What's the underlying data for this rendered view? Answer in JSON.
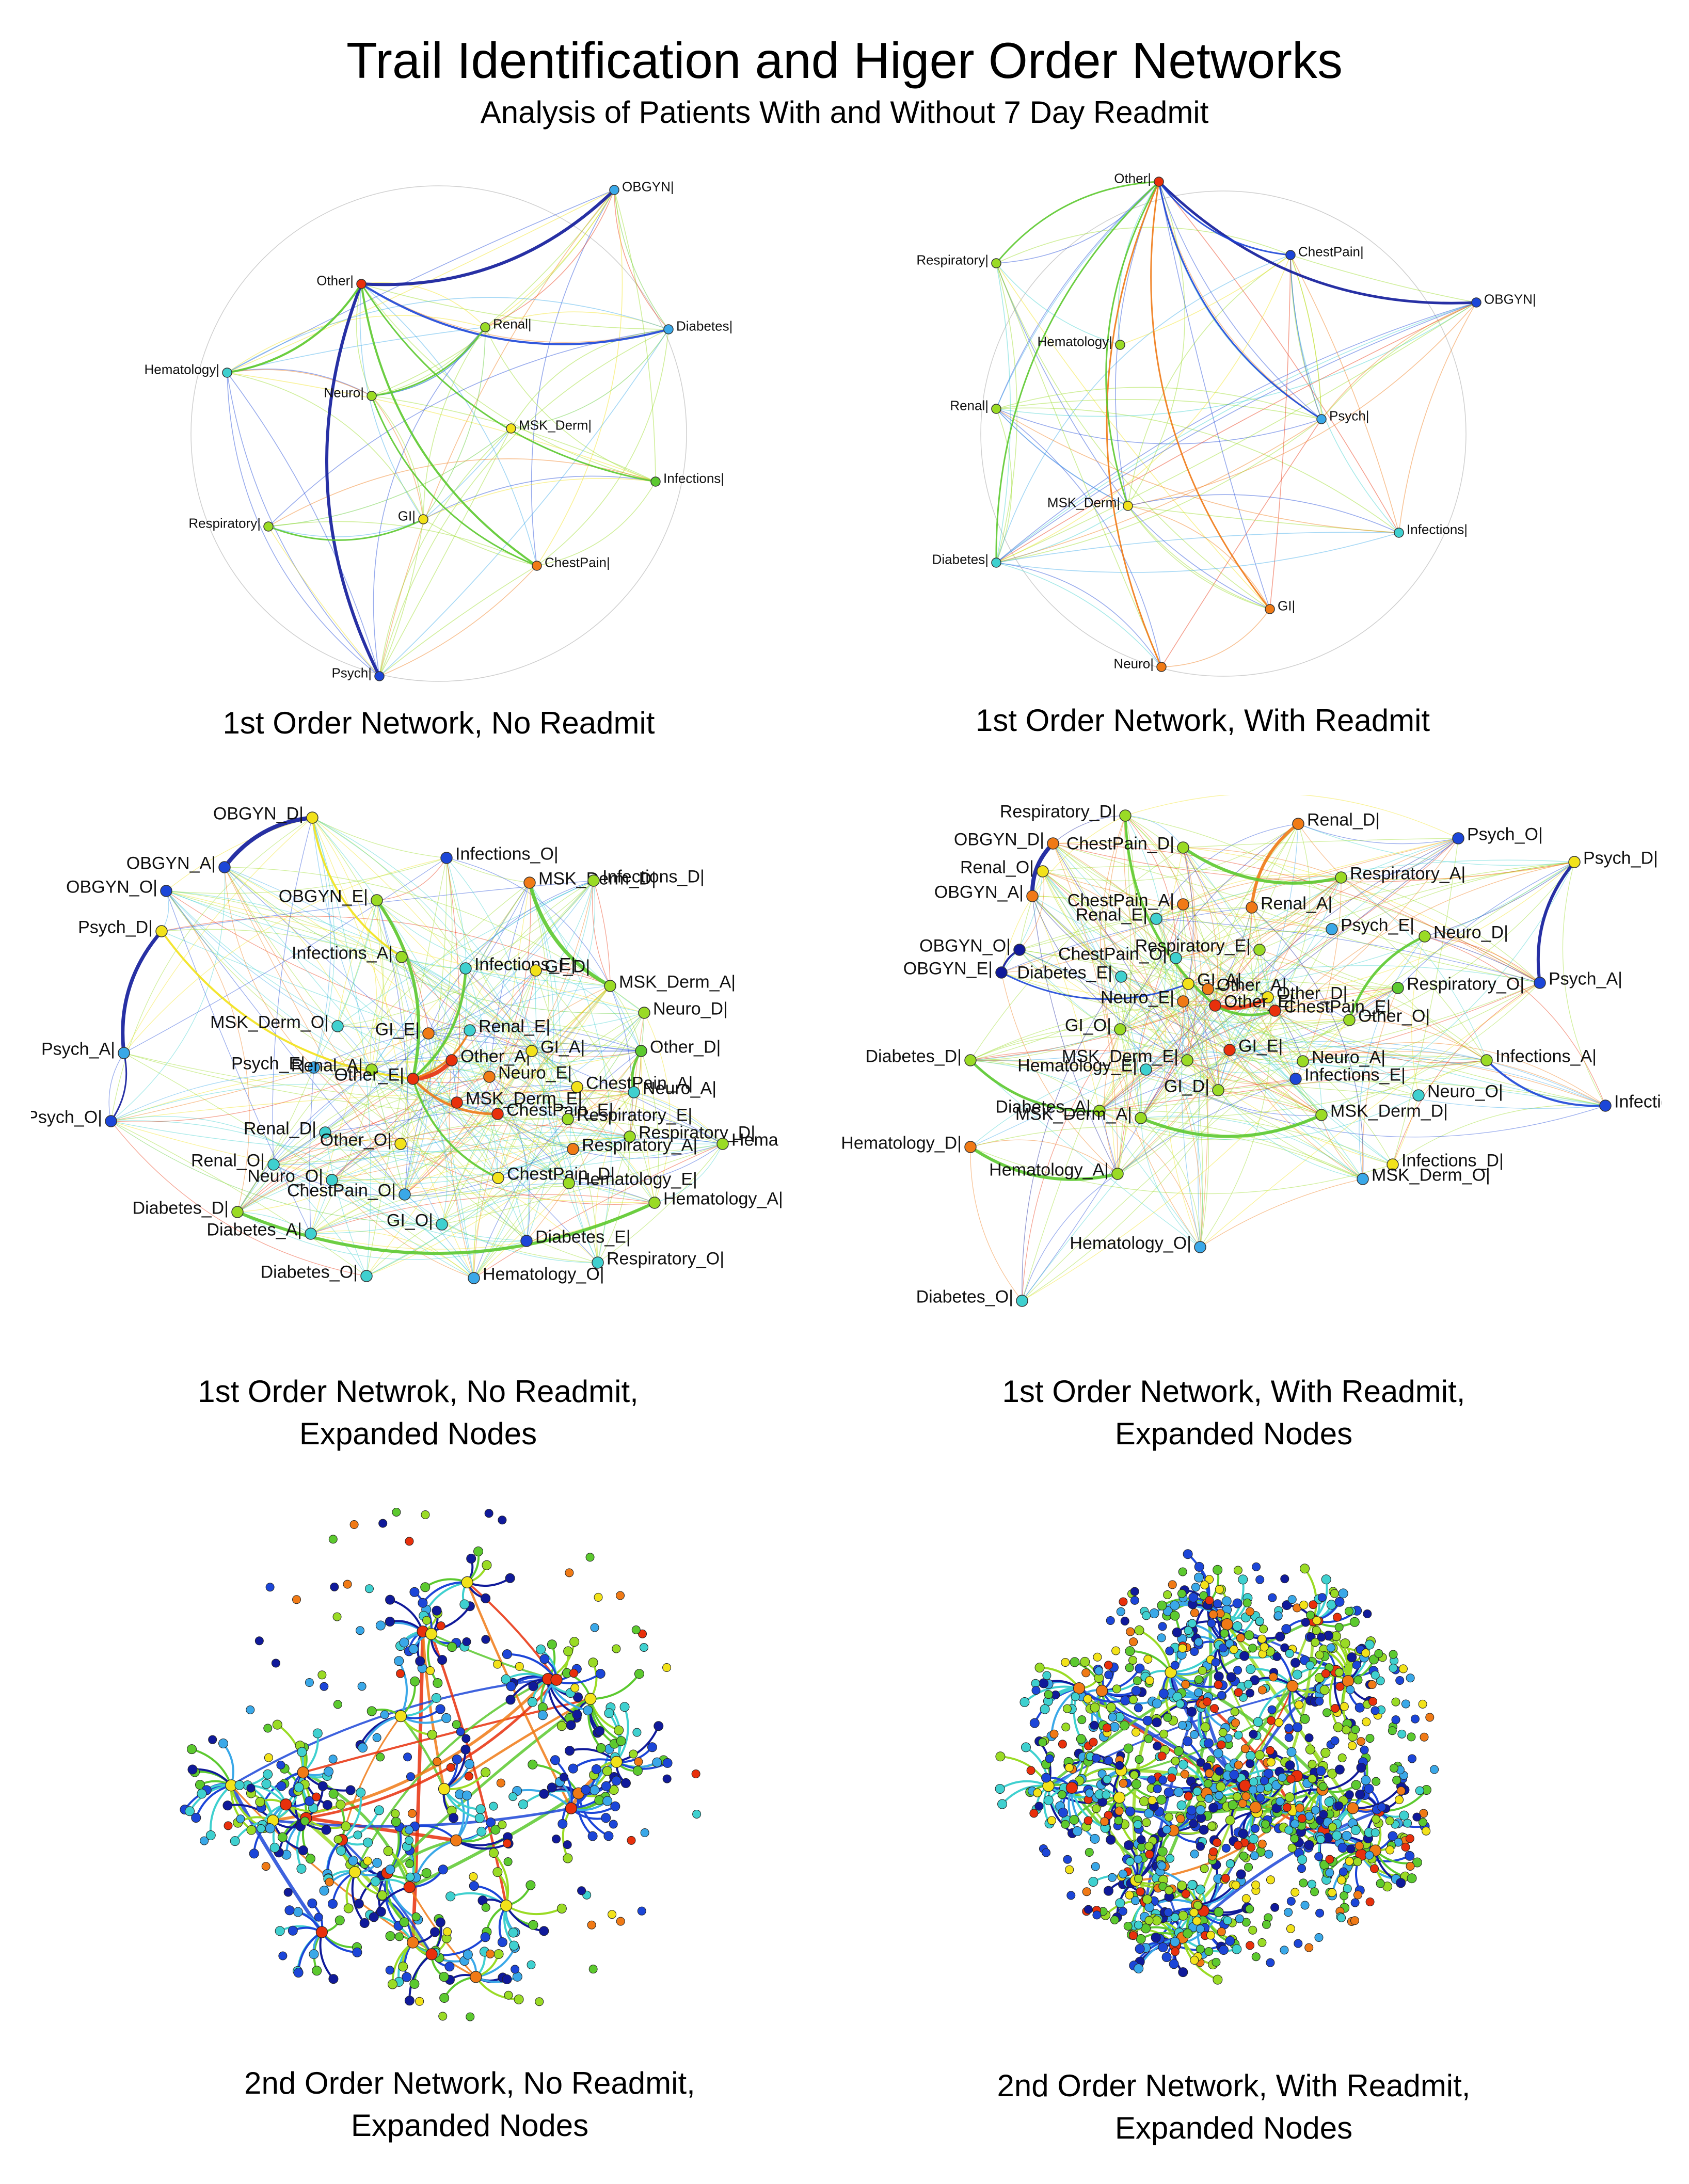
{
  "title": "Trail Identification and Higer Order Networks",
  "subtitle": "Analysis of Patients With and Without 7 Day Readmit",
  "colors": {
    "red": "#e8300c",
    "orange": "#f07a16",
    "yellow": "#f2e21a",
    "lime": "#9adb25",
    "green": "#5cc92f",
    "cyan": "#3fd0cf",
    "lightblue": "#3aa8e8",
    "blue": "#1c46d8",
    "navy": "#101a9a"
  },
  "panels": [
    {
      "id": "first-order-no-readmit",
      "caption": [
        "1st Order Network, No Readmit"
      ],
      "nodes": [
        {
          "label": "OBGYN|",
          "color": "lightblue"
        },
        {
          "label": "Other|",
          "color": "red"
        },
        {
          "label": "Renal|",
          "color": "lime"
        },
        {
          "label": "Diabetes|",
          "color": "lightblue"
        },
        {
          "label": "Hematology|",
          "color": "cyan"
        },
        {
          "label": "Neuro|",
          "color": "lime"
        },
        {
          "label": "MSK_Derm|",
          "color": "yellow"
        },
        {
          "label": "Infections|",
          "color": "green"
        },
        {
          "label": "Respiratory|",
          "color": "lime"
        },
        {
          "label": "GI|",
          "color": "yellow"
        },
        {
          "label": "ChestPain|",
          "color": "orange"
        },
        {
          "label": "Psych|",
          "color": "blue"
        }
      ]
    },
    {
      "id": "first-order-with-readmit",
      "caption": [
        "1st Order Network, With Readmit"
      ],
      "nodes": [
        {
          "label": "Other|",
          "color": "red"
        },
        {
          "label": "ChestPain|",
          "color": "blue"
        },
        {
          "label": "Respiratory|",
          "color": "lime"
        },
        {
          "label": "OBGYN|",
          "color": "blue"
        },
        {
          "label": "Hematology|",
          "color": "lime"
        },
        {
          "label": "Renal|",
          "color": "lime"
        },
        {
          "label": "Psych|",
          "color": "lightblue"
        },
        {
          "label": "MSK_Derm|",
          "color": "yellow"
        },
        {
          "label": "Infections|",
          "color": "cyan"
        },
        {
          "label": "Diabetes|",
          "color": "cyan"
        },
        {
          "label": "GI|",
          "color": "orange"
        },
        {
          "label": "Neuro|",
          "color": "orange"
        }
      ]
    },
    {
      "id": "first-order-no-readmit-expanded",
      "caption": [
        "1st Order Netwrok, No Readmit,",
        "Expanded Nodes"
      ],
      "nodes": [
        {
          "label": "OBGYN_D|",
          "color": "yellow"
        },
        {
          "label": "OBGYN_A|",
          "color": "blue"
        },
        {
          "label": "OBGYN_O|",
          "color": "blue"
        },
        {
          "label": "Infections_O|",
          "color": "blue"
        },
        {
          "label": "MSK_Derm_D|",
          "color": "orange"
        },
        {
          "label": "Infections_D|",
          "color": "lime"
        },
        {
          "label": "OBGYN_E|",
          "color": "lime"
        },
        {
          "label": "Psych_D|",
          "color": "yellow"
        },
        {
          "label": "Infections_A|",
          "color": "lime"
        },
        {
          "label": "Infections_E|",
          "color": "cyan"
        },
        {
          "label": "GI_D|",
          "color": "yellow"
        },
        {
          "label": "MSK_Derm_A|",
          "color": "lime"
        },
        {
          "label": "Neuro_D|",
          "color": "lime"
        },
        {
          "label": "MSK_Derm_O|",
          "color": "cyan"
        },
        {
          "label": "GI_E|",
          "color": "orange"
        },
        {
          "label": "Renal_E|",
          "color": "cyan"
        },
        {
          "label": "Other_D|",
          "color": "green"
        },
        {
          "label": "Psych_A|",
          "color": "lightblue"
        },
        {
          "label": "Other_A|",
          "color": "red"
        },
        {
          "label": "GI_A|",
          "color": "yellow"
        },
        {
          "label": "Psych_E|",
          "color": "lightblue"
        },
        {
          "label": "Renal_A|",
          "color": "lime"
        },
        {
          "label": "Other_E|",
          "color": "red"
        },
        {
          "label": "Neuro_E|",
          "color": "orange"
        },
        {
          "label": "ChestPain_A|",
          "color": "yellow"
        },
        {
          "label": "Neuro_A|",
          "color": "cyan"
        },
        {
          "label": "MSK_Derm_E|",
          "color": "red"
        },
        {
          "label": "ChestPain_E|",
          "color": "red"
        },
        {
          "label": "Psych_O|",
          "color": "blue"
        },
        {
          "label": "Respiratory_E|",
          "color": "lime"
        },
        {
          "label": "Renal_D|",
          "color": "cyan"
        },
        {
          "label": "Respiratory_D|",
          "color": "lime"
        },
        {
          "label": "Other_O|",
          "color": "yellow"
        },
        {
          "label": "Respiratory_A|",
          "color": "orange"
        },
        {
          "label": "Hema",
          "color": "lime"
        },
        {
          "label": "Renal_O|",
          "color": "cyan"
        },
        {
          "label": "Neuro_O|",
          "color": "cyan"
        },
        {
          "label": "ChestPain_D|",
          "color": "yellow"
        },
        {
          "label": "Hematology_E|",
          "color": "lime"
        },
        {
          "label": "ChestPain_O|",
          "color": "lightblue"
        },
        {
          "label": "Diabetes_D|",
          "color": "lime"
        },
        {
          "label": "Hematology_A|",
          "color": "lime"
        },
        {
          "label": "GI_O|",
          "color": "cyan"
        },
        {
          "label": "Diabetes_A|",
          "color": "cyan"
        },
        {
          "label": "Diabetes_E|",
          "color": "blue"
        },
        {
          "label": "Respiratory_O|",
          "color": "cyan"
        },
        {
          "label": "Diabetes_O|",
          "color": "cyan"
        },
        {
          "label": "Hematology_O|",
          "color": "lightblue"
        }
      ]
    },
    {
      "id": "first-order-with-readmit-expanded",
      "caption": [
        "1st Order Network, With Readmit,",
        "Expanded Nodes"
      ],
      "nodes": [
        {
          "label": "Respiratory_D|",
          "color": "lime"
        },
        {
          "label": "Renal_D|",
          "color": "orange"
        },
        {
          "label": "Psych_O|",
          "color": "blue"
        },
        {
          "label": "OBGYN_D|",
          "color": "orange"
        },
        {
          "label": "ChestPain_D|",
          "color": "lime"
        },
        {
          "label": "Psych_D|",
          "color": "yellow"
        },
        {
          "label": "Renal_O|",
          "color": "yellow"
        },
        {
          "label": "Respiratory_A|",
          "color": "lime"
        },
        {
          "label": "OBGYN_A|",
          "color": "orange"
        },
        {
          "label": "ChestPain_A|",
          "color": "orange"
        },
        {
          "label": "Renal_A|",
          "color": "orange"
        },
        {
          "label": "Renal_E|",
          "color": "cyan"
        },
        {
          "label": "Psych_E|",
          "color": "lightblue"
        },
        {
          "label": "Neuro_D|",
          "color": "lime"
        },
        {
          "label": "OBGYN_O|",
          "color": "navy"
        },
        {
          "label": "Respiratory_E|",
          "color": "lime"
        },
        {
          "label": "ChestPain_O|",
          "color": "cyan"
        },
        {
          "label": "OBGYN_E|",
          "color": "navy"
        },
        {
          "label": "Psych_A|",
          "color": "blue"
        },
        {
          "label": "Diabetes_E|",
          "color": "cyan"
        },
        {
          "label": "GI_A|",
          "color": "yellow"
        },
        {
          "label": "Other_A|",
          "color": "orange"
        },
        {
          "label": "Other_D|",
          "color": "yellow"
        },
        {
          "label": "Respiratory_O|",
          "color": "green"
        },
        {
          "label": "Neuro_E|",
          "color": "orange"
        },
        {
          "label": "Other_E|",
          "color": "red"
        },
        {
          "label": "ChestPain_E|",
          "color": "red"
        },
        {
          "label": "Other_O|",
          "color": "lime"
        },
        {
          "label": "GI_O|",
          "color": "lime"
        },
        {
          "label": "Diabetes_D|",
          "color": "lime"
        },
        {
          "label": "MSK_Derm_E|",
          "color": "lime"
        },
        {
          "label": "GI_E|",
          "color": "red"
        },
        {
          "label": "Neuro_A|",
          "color": "lime"
        },
        {
          "label": "Infections_A|",
          "color": "lime"
        },
        {
          "label": "Hematology_E|",
          "color": "cyan"
        },
        {
          "label": "Infections_E|",
          "color": "blue"
        },
        {
          "label": "GI_D|",
          "color": "lime"
        },
        {
          "label": "Neuro_O|",
          "color": "cyan"
        },
        {
          "label": "Infections_O|",
          "color": "blue"
        },
        {
          "label": "Diabetes_A|",
          "color": "lime"
        },
        {
          "label": "MSK_Derm_A|",
          "color": "lime"
        },
        {
          "label": "MSK_Derm_D|",
          "color": "lime"
        },
        {
          "label": "Hematology_D|",
          "color": "orange"
        },
        {
          "label": "Infections_D|",
          "color": "yellow"
        },
        {
          "label": "Hematology_A|",
          "color": "lime"
        },
        {
          "label": "MSK_Derm_O|",
          "color": "lightblue"
        },
        {
          "label": "Hematology_O|",
          "color": "lightblue"
        },
        {
          "label": "Diabetes_O|",
          "color": "cyan"
        }
      ]
    },
    {
      "id": "second-order-no-readmit",
      "caption": [
        "2nd Order Network, No Readmit,",
        "Expanded Nodes"
      ],
      "nodes": []
    },
    {
      "id": "second-order-with-readmit",
      "caption": [
        "2nd Order Network, With Readmit,",
        "Expanded Nodes"
      ],
      "nodes": []
    }
  ]
}
